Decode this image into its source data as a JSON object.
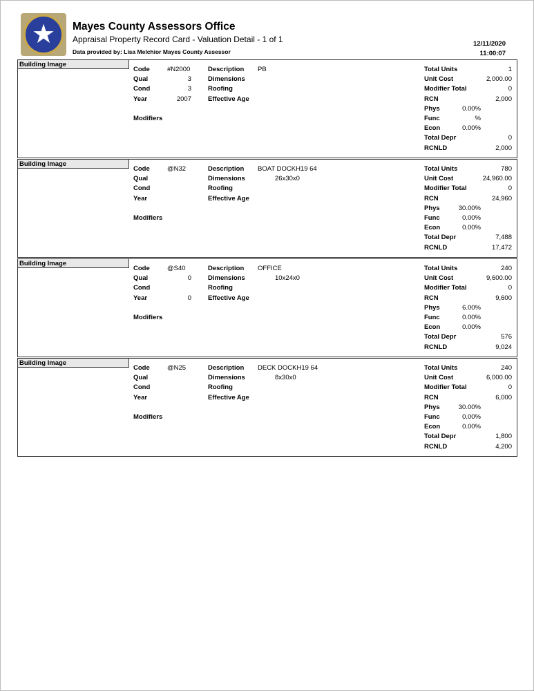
{
  "header": {
    "title": "Mayes County Assessors Office",
    "subtitle": "Appraisal Property Record Card - Valuation Detail - 1 of 1",
    "provided_by": "Data provided by: Lisa Melchior Mayes County Assessor",
    "date": "12/11/2020",
    "time": "11:00:07",
    "seal": "Great Seal of the State of Oklahoma"
  },
  "labels": {
    "building_image": "Building Image",
    "code": "Code",
    "qual": "Qual",
    "cond": "Cond",
    "year": "Year",
    "modifiers": "Modifiers",
    "description": "Description",
    "dimensions": "Dimensions",
    "roofing": "Roofing",
    "effective_age": "Effective Age",
    "total_units": "Total Units",
    "unit_cost": "Unit Cost",
    "modifier_total": "Modifier Total",
    "rcn": "RCN",
    "phys": "Phys",
    "func": "Func",
    "econ": "Econ",
    "total_depr": "Total Depr",
    "rcnld": "RCNLD"
  },
  "buildings": [
    {
      "code": "#N2000",
      "qual": "3",
      "cond": "3",
      "year": "2007",
      "description": "PB",
      "dimensions": "",
      "total_units": "1",
      "unit_cost": "2,000.00",
      "modifier_total": "0",
      "rcn": "2,000",
      "phys": "0.00%",
      "func": "%",
      "econ": "0.00%",
      "total_depr": "0",
      "rcnld": "2,000"
    },
    {
      "code": "@N32",
      "qual": "",
      "cond": "",
      "year": "",
      "description": "BOAT DOCKH19 64",
      "dimensions": "26x30x0",
      "total_units": "780",
      "unit_cost": "24,960.00",
      "modifier_total": "0",
      "rcn": "24,960",
      "phys": "30.00%",
      "func": "0.00%",
      "econ": "0.00%",
      "total_depr": "7,488",
      "rcnld": "17,472"
    },
    {
      "code": "@S40",
      "qual": "0",
      "cond": "",
      "year": "0",
      "description": "OFFICE",
      "dimensions": "10x24x0",
      "total_units": "240",
      "unit_cost": "9,600.00",
      "modifier_total": "0",
      "rcn": "9,600",
      "phys": "6.00%",
      "func": "0.00%",
      "econ": "0.00%",
      "total_depr": "576",
      "rcnld": "9,024"
    },
    {
      "code": "@N25",
      "qual": "",
      "cond": "",
      "year": "",
      "description": "DECK DOCKH19 64",
      "dimensions": "8x30x0",
      "total_units": "240",
      "unit_cost": "6,000.00",
      "modifier_total": "0",
      "rcn": "6,000",
      "phys": "30.00%",
      "func": "0.00%",
      "econ": "0.00%",
      "total_depr": "1,800",
      "rcnld": "4,200"
    }
  ]
}
